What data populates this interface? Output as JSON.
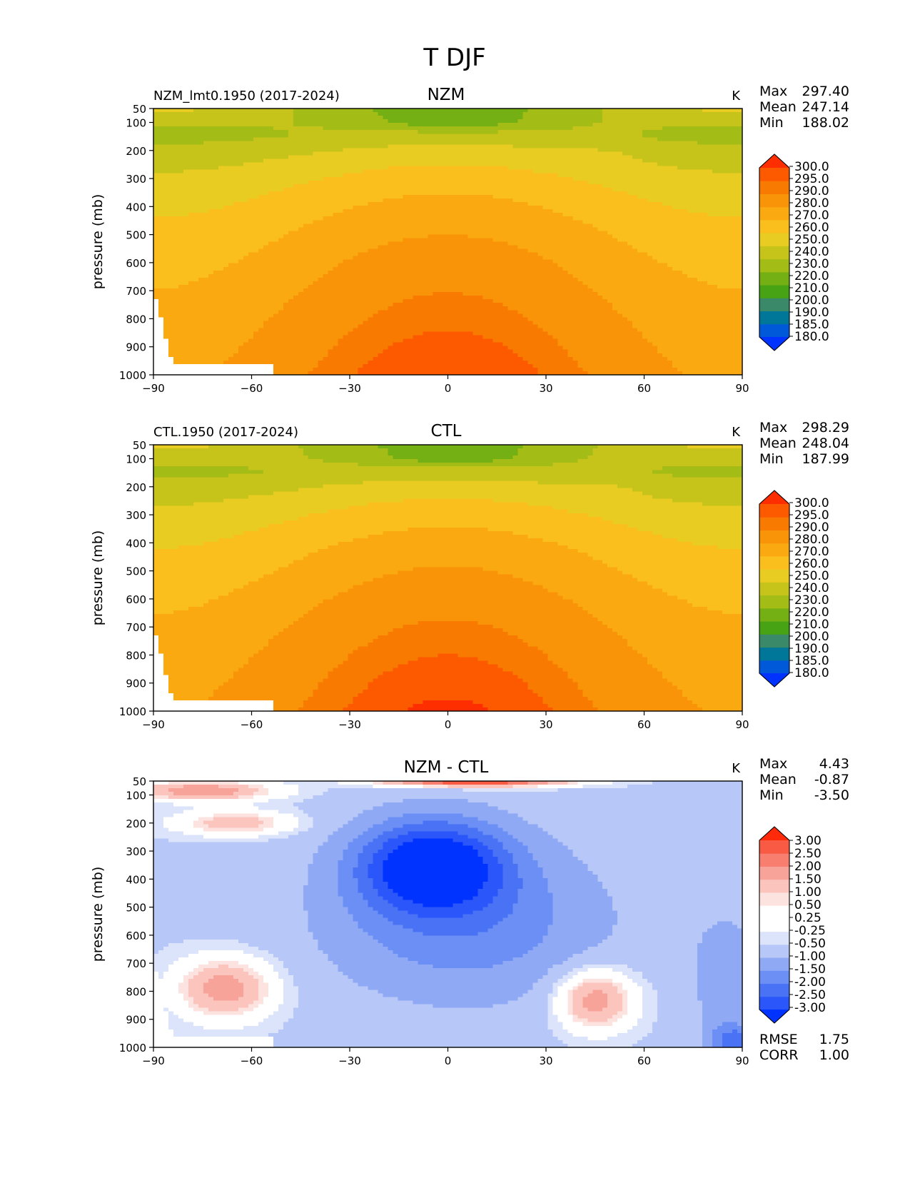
{
  "figure_title": "T DJF",
  "colors": {
    "abs_levels": [
      "#0033ff",
      "#0059d9",
      "#007799",
      "#3a8a6a",
      "#48a314",
      "#74b013",
      "#a3bd16",
      "#c6c41a",
      "#e9cc22",
      "#fbbf1d",
      "#fba910",
      "#f99408",
      "#f97a00",
      "#fd5a00",
      "#ff2e00"
    ],
    "diff_levels": [
      "#0033ff",
      "#2a56fa",
      "#4a72f5",
      "#6b8ff5",
      "#8fa9f5",
      "#b6c7f8",
      "#dce4fb",
      "#ffffff",
      "#ffffff",
      "#fde3e0",
      "#fbc4bd",
      "#f8a39a",
      "#f87e70",
      "#f85a44",
      "#ff2a0a"
    ]
  },
  "chart_data": [
    {
      "type": "contourf",
      "left_title": "NZM_lmt0.1950 (2017-2024)",
      "title": "NZM",
      "units": "K",
      "stats": [
        {
          "label": "Max",
          "value": "297.40"
        },
        {
          "label": "Mean",
          "value": "247.14"
        },
        {
          "label": "Min",
          "value": "188.02"
        }
      ],
      "xlabel": "",
      "ylabel": "pressure (mb)",
      "xlim": [
        -90,
        90
      ],
      "ylim": [
        1000,
        50
      ],
      "xticks": [
        "−90",
        "−60",
        "−30",
        "0",
        "30",
        "60",
        "90"
      ],
      "yticks": [
        "50",
        "100",
        "200",
        "300",
        "400",
        "500",
        "600",
        "700",
        "800",
        "900",
        "1000"
      ],
      "colorbar_levels": [
        "300.0",
        "295.0",
        "290.0",
        "280.0",
        "270.0",
        "260.0",
        "250.0",
        "240.0",
        "230.0",
        "220.0",
        "210.0",
        "200.0",
        "190.0",
        "185.0",
        "180.0"
      ],
      "footer": []
    },
    {
      "type": "contourf",
      "left_title": "CTL.1950 (2017-2024)",
      "title": "CTL",
      "units": "K",
      "stats": [
        {
          "label": "Max",
          "value": "298.29"
        },
        {
          "label": "Mean",
          "value": "248.04"
        },
        {
          "label": "Min",
          "value": "187.99"
        }
      ],
      "xlabel": "",
      "ylabel": "pressure (mb)",
      "xlim": [
        -90,
        90
      ],
      "ylim": [
        1000,
        50
      ],
      "xticks": [
        "−90",
        "−60",
        "−30",
        "0",
        "30",
        "60",
        "90"
      ],
      "yticks": [
        "50",
        "100",
        "200",
        "300",
        "400",
        "500",
        "600",
        "700",
        "800",
        "900",
        "1000"
      ],
      "colorbar_levels": [
        "300.0",
        "295.0",
        "290.0",
        "280.0",
        "270.0",
        "260.0",
        "250.0",
        "240.0",
        "230.0",
        "220.0",
        "210.0",
        "200.0",
        "190.0",
        "185.0",
        "180.0"
      ],
      "footer": []
    },
    {
      "type": "contourf",
      "left_title": "",
      "title": "NZM - CTL",
      "units": "K",
      "stats": [
        {
          "label": "Max",
          "value": "4.43"
        },
        {
          "label": "Mean",
          "value": "-0.87"
        },
        {
          "label": "Min",
          "value": "-3.50"
        }
      ],
      "xlabel": "",
      "ylabel": "pressure (mb)",
      "xlim": [
        -90,
        90
      ],
      "ylim": [
        1000,
        50
      ],
      "xticks": [
        "−90",
        "−60",
        "−30",
        "0",
        "30",
        "60",
        "90"
      ],
      "yticks": [
        "50",
        "100",
        "200",
        "300",
        "400",
        "500",
        "600",
        "700",
        "800",
        "900",
        "1000"
      ],
      "colorbar_levels": [
        "3.00",
        "2.50",
        "2.00",
        "1.50",
        "1.00",
        "0.50",
        "0.25",
        "-0.25",
        "-0.50",
        "-1.00",
        "-1.50",
        "-2.00",
        "-2.50",
        "-3.00"
      ],
      "footer": [
        {
          "label": "RMSE",
          "value": "1.75"
        },
        {
          "label": "CORR",
          "value": "1.00"
        }
      ]
    }
  ]
}
